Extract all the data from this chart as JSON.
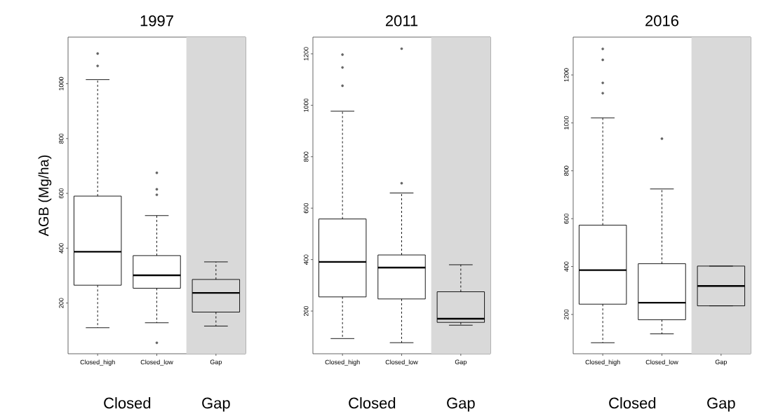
{
  "chart_data": [
    {
      "type": "box",
      "title": "1997",
      "ylabel": "AGB (Mg/ha)",
      "categories": [
        "Closed_high",
        "Closed_low",
        "Gap"
      ],
      "boxes": [
        {
          "low": 110,
          "q1": 265,
          "median": 387,
          "q3": 590,
          "high": 1015,
          "outliers": [
            1110,
            1065
          ]
        },
        {
          "low": 128,
          "q1": 254,
          "median": 301,
          "q3": 373,
          "high": 519,
          "outliers": [
            675,
            615,
            595,
            55
          ]
        },
        {
          "low": 116,
          "q1": 167,
          "median": 237,
          "q3": 286,
          "high": 350
        }
      ],
      "ylim": [
        15,
        1170
      ],
      "yticks": [
        200,
        400,
        600,
        800,
        1000
      ],
      "bands": [
        {
          "axis": "x",
          "from": "Gap",
          "to": "Gap",
          "color": "#d9d9d9"
        }
      ],
      "annotations": [
        "Closed",
        "Gap"
      ]
    },
    {
      "type": "box",
      "title": "2011",
      "categories": [
        "Closed_high",
        "Closed_low",
        "Gap"
      ],
      "boxes": [
        {
          "low": 93,
          "q1": 255,
          "median": 391,
          "q3": 558,
          "high": 977,
          "outliers": [
            1197,
            1147,
            1076
          ]
        },
        {
          "low": 77,
          "q1": 247,
          "median": 369,
          "q3": 418,
          "high": 659,
          "outliers": [
            1220,
            697
          ]
        },
        {
          "low": 145,
          "q1": 156,
          "median": 170,
          "q3": 275,
          "high": 380
        }
      ],
      "ylim": [
        34,
        1265
      ],
      "yticks": [
        200,
        400,
        600,
        800,
        1000,
        1200
      ],
      "bands": [
        {
          "axis": "x",
          "from": "Gap",
          "to": "Gap",
          "color": "#d9d9d9"
        }
      ],
      "annotations": [
        "Closed",
        "Gap"
      ]
    },
    {
      "type": "box",
      "title": "2016",
      "categories": [
        "Closed_high",
        "Closed_low",
        "Gap"
      ],
      "boxes": [
        {
          "low": 82,
          "q1": 243,
          "median": 385,
          "q3": 573,
          "high": 1021,
          "outliers": [
            1309,
            1263,
            1167,
            1124
          ]
        },
        {
          "low": 119,
          "q1": 178,
          "median": 249,
          "q3": 412,
          "high": 724,
          "outliers": [
            934
          ]
        },
        {
          "low": 236,
          "q1": 236,
          "median": 319,
          "q3": 402,
          "high": 402
        }
      ],
      "ylim": [
        36,
        1358
      ],
      "yticks": [
        200,
        400,
        600,
        800,
        1000,
        1200
      ],
      "bands": [
        {
          "axis": "x",
          "from": "Gap",
          "to": "Gap",
          "color": "#d9d9d9"
        }
      ],
      "annotations": [
        "Closed",
        "Gap"
      ]
    }
  ]
}
